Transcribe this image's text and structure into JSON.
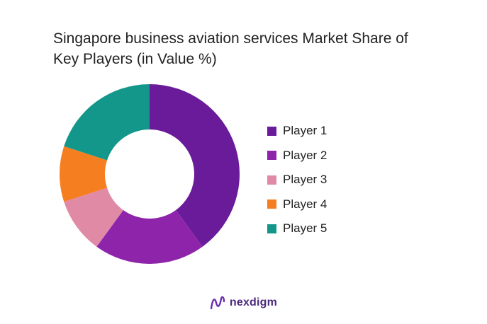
{
  "chart_data": {
    "type": "pie",
    "donut": true,
    "title": "Singapore business aviation services Market Share of Key Players (in Value %)",
    "legend_position": "right",
    "slices": [
      {
        "label": "Player 1",
        "value": 40,
        "color": "#6a1b9a"
      },
      {
        "label": "Player 2",
        "value": 20,
        "color": "#8e24aa"
      },
      {
        "label": "Player 3",
        "value": 10,
        "color": "#e08aa5"
      },
      {
        "label": "Player 4",
        "value": 10,
        "color": "#f57f20"
      },
      {
        "label": "Player 5",
        "value": 20,
        "color": "#12978a"
      }
    ]
  },
  "branding": {
    "logo_text": "nexdigm",
    "logo_icon": "nexdigm-logo-icon",
    "logo_color": "#4a2a7a"
  }
}
